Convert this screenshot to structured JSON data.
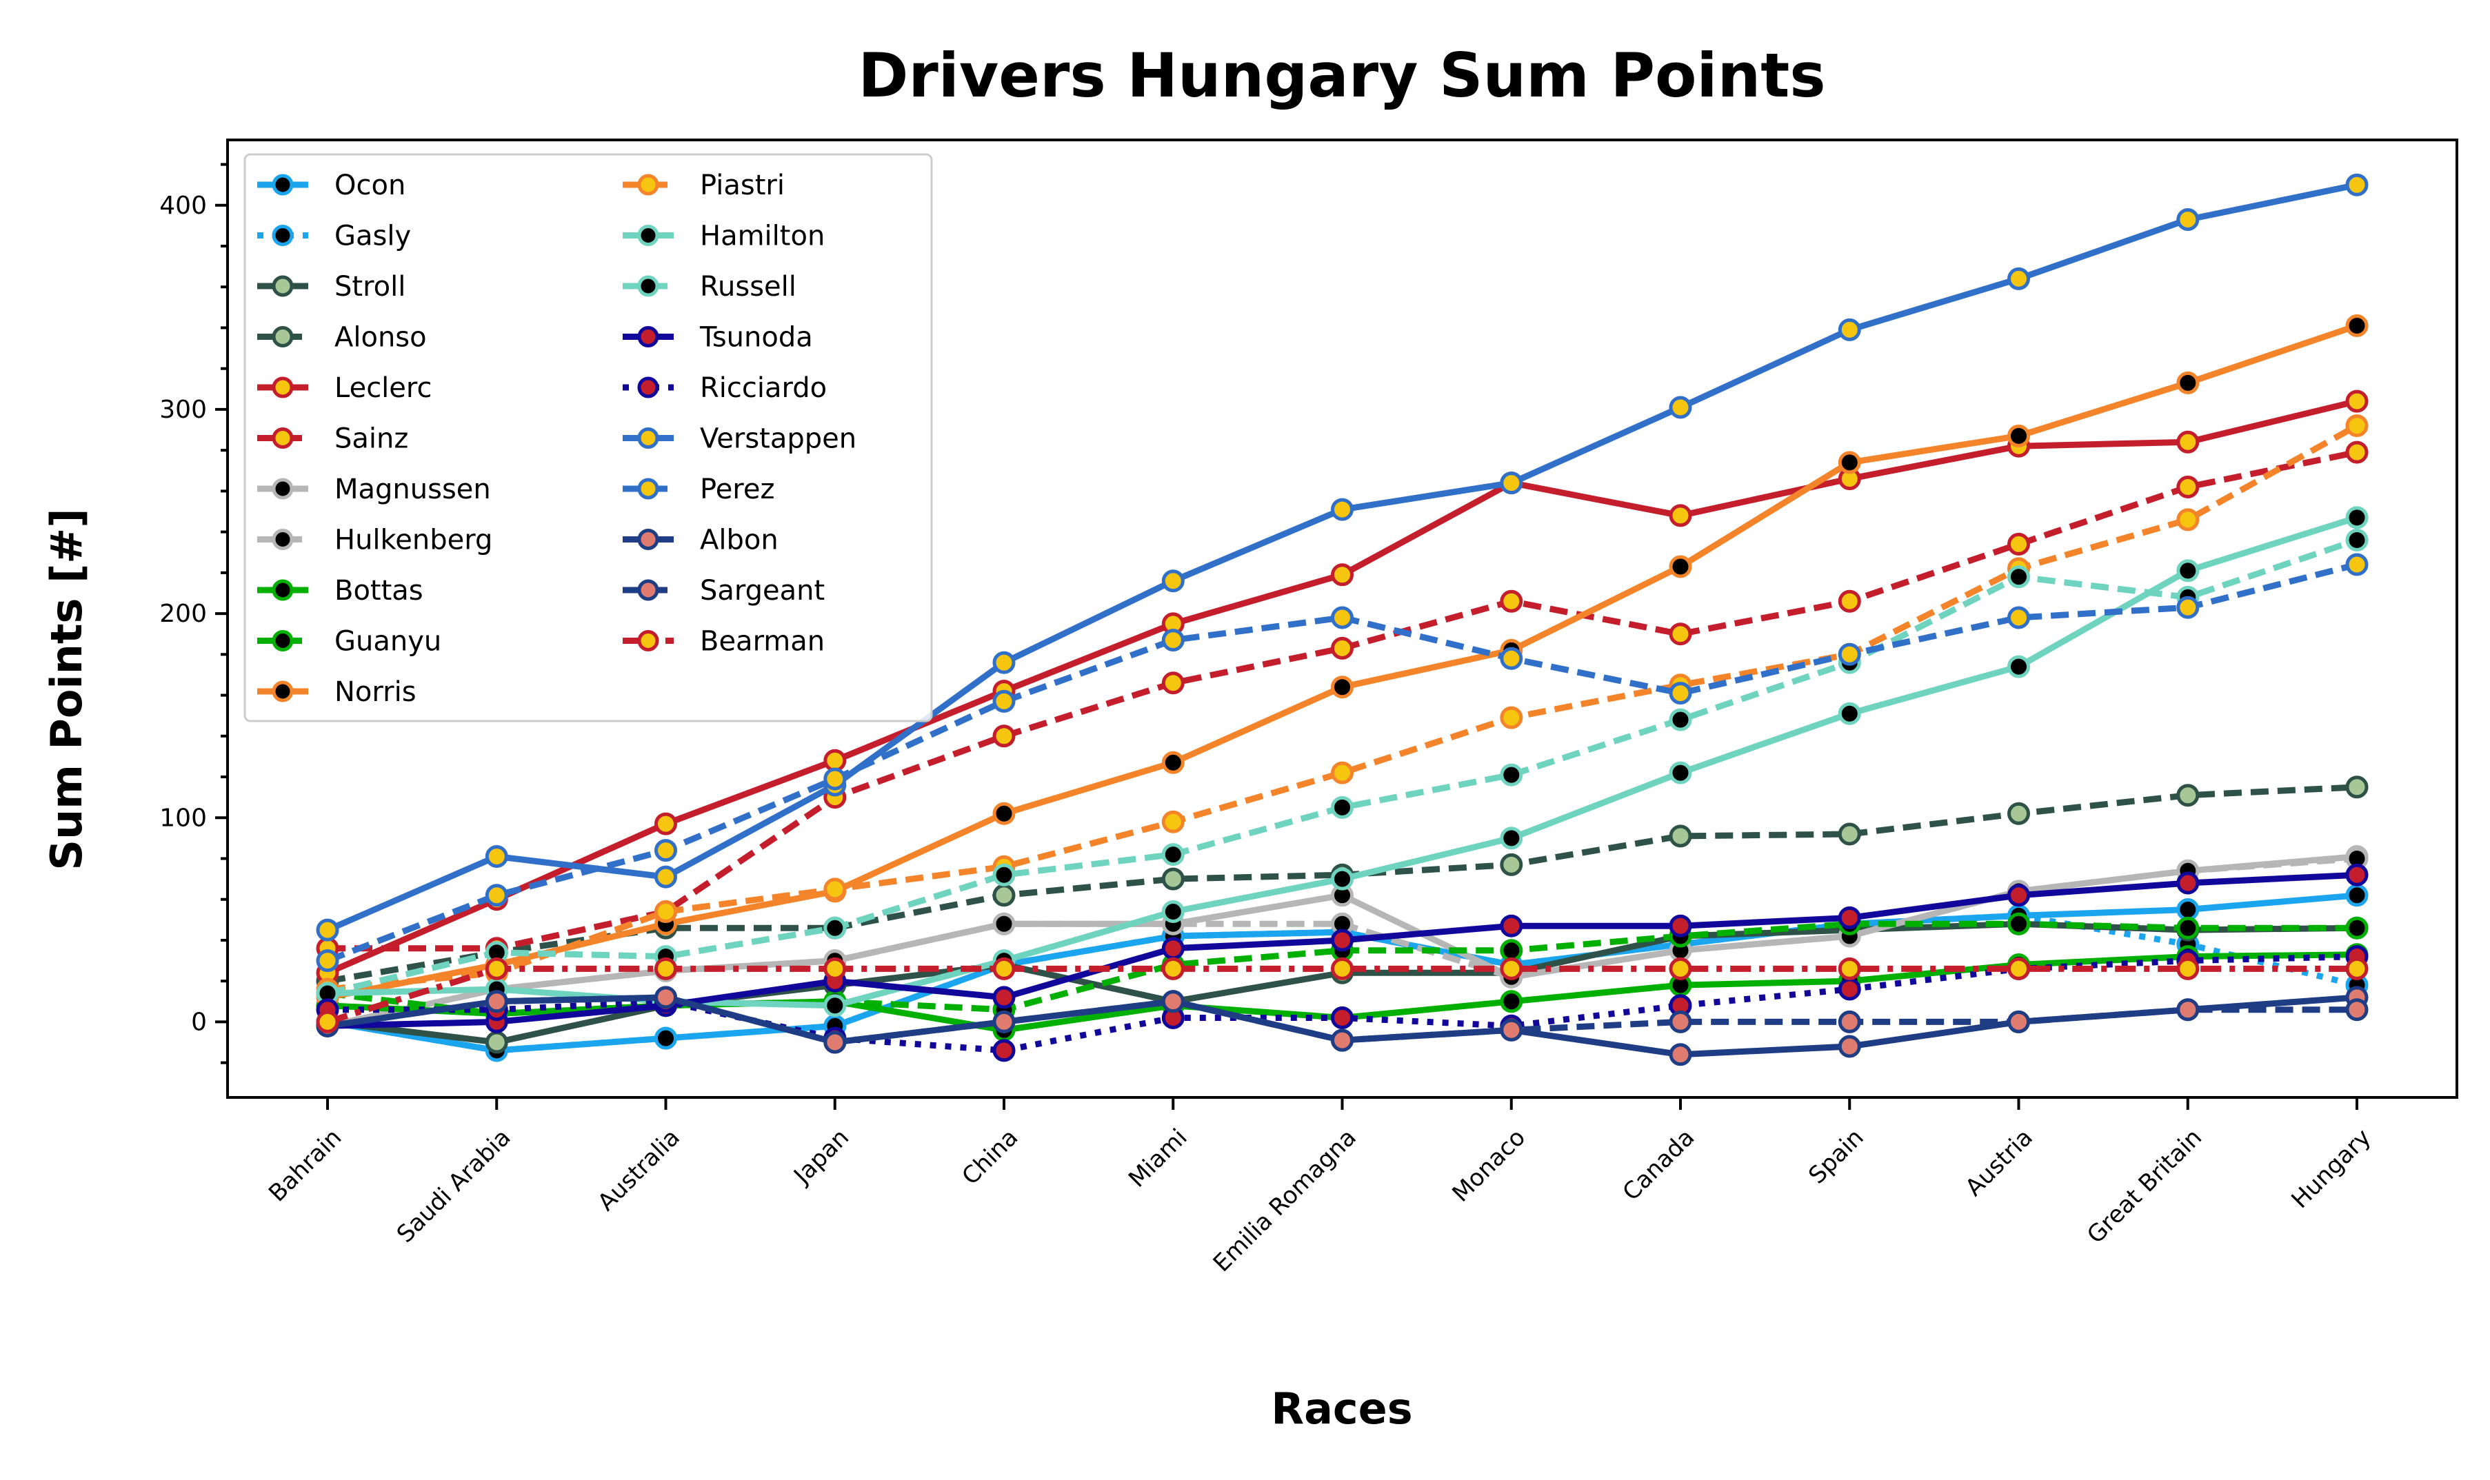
{
  "chart_data": {
    "type": "line",
    "title": "Drivers Hungary Sum Points",
    "xlabel": "Races",
    "ylabel": "Sum Points [#]",
    "ylim": [
      -37,
      432
    ],
    "yticks": [
      0,
      100,
      200,
      300,
      400
    ],
    "grid": false,
    "legend_placement": "top-left",
    "categories": [
      "Bahrain",
      "Saudi Arabia",
      "Australia",
      "Japan",
      "China",
      "Miami",
      "Emilia Romagna",
      "Monaco",
      "Canada",
      "Spain",
      "Austria",
      "Great Britain",
      "Hungary"
    ],
    "series": [
      {
        "name": "Ocon",
        "color": "#1ba5ee",
        "dash": "solid",
        "marker_face": "#000000",
        "marker_edge": "#1ba5ee",
        "values": [
          0,
          -14,
          -8,
          -2,
          28,
          42,
          44,
          28,
          38,
          48,
          52,
          55,
          62
        ]
      },
      {
        "name": "Gasly",
        "color": "#1ba5ee",
        "dash": "dotted",
        "marker_face": "#000000",
        "marker_edge": "#1ba5ee",
        "values": [
          0,
          -14,
          -8,
          -2,
          28,
          42,
          44,
          28,
          38,
          48,
          52,
          38,
          18
        ]
      },
      {
        "name": "Stroll",
        "color": "#2f5248",
        "dash": "solid",
        "marker_face": "#a7c796",
        "marker_edge": "#2f5248",
        "values": [
          0,
          -10,
          8,
          18,
          28,
          10,
          24,
          24,
          42,
          45,
          48,
          45,
          46
        ]
      },
      {
        "name": "Alonso",
        "color": "#2f5248",
        "dash": "dashed",
        "marker_face": "#a7c796",
        "marker_edge": "#2f5248",
        "values": [
          20,
          34,
          46,
          46,
          62,
          70,
          72,
          77,
          91,
          92,
          102,
          111,
          115
        ]
      },
      {
        "name": "Leclerc",
        "color": "#c41e2d",
        "dash": "solid",
        "marker_face": "#f5c510",
        "marker_edge": "#c41e2d",
        "values": [
          24,
          60,
          97,
          128,
          162,
          195,
          219,
          264,
          248,
          266,
          282,
          284,
          304
        ]
      },
      {
        "name": "Sainz",
        "color": "#c41e2d",
        "dash": "dashed",
        "marker_face": "#f5c510",
        "marker_edge": "#c41e2d",
        "values": [
          36,
          36,
          54,
          110,
          140,
          166,
          183,
          206,
          190,
          206,
          234,
          262,
          279
        ]
      },
      {
        "name": "Magnussen",
        "color": "#b6b6b6",
        "dash": "solid",
        "marker_face": "#000000",
        "marker_edge": "#b6b6b6",
        "values": [
          -2,
          16,
          25,
          30,
          48,
          48,
          62,
          22,
          35,
          42,
          64,
          74,
          81
        ]
      },
      {
        "name": "Hulkenberg",
        "color": "#b6b6b6",
        "dash": "dashed",
        "marker_face": "#000000",
        "marker_edge": "#b6b6b6",
        "values": [
          -2,
          16,
          25,
          30,
          48,
          48,
          48,
          22,
          35,
          42,
          64,
          74,
          80
        ]
      },
      {
        "name": "Bottas",
        "color": "#00b000",
        "dash": "solid",
        "marker_face": "#000000",
        "marker_edge": "#00b000",
        "values": [
          8,
          4,
          8,
          10,
          -4,
          8,
          2,
          10,
          18,
          20,
          28,
          32,
          33
        ]
      },
      {
        "name": "Guanyu",
        "color": "#00b000",
        "dash": "dashed",
        "marker_face": "#000000",
        "marker_edge": "#00b000",
        "values": [
          14,
          4,
          8,
          10,
          6,
          28,
          35,
          35,
          42,
          48,
          48,
          46,
          46
        ]
      },
      {
        "name": "Norris",
        "color": "#f4842a",
        "dash": "solid",
        "marker_face": "#000000",
        "marker_edge": "#f4842a",
        "values": [
          12,
          28,
          48,
          64,
          102,
          127,
          164,
          182,
          223,
          274,
          287,
          313,
          341
        ]
      },
      {
        "name": "Piastri",
        "color": "#f4842a",
        "dash": "dashed",
        "marker_face": "#f5c510",
        "marker_edge": "#f4842a",
        "values": [
          16,
          24,
          54,
          65,
          76,
          98,
          122,
          149,
          165,
          180,
          222,
          246,
          292
        ]
      },
      {
        "name": "Hamilton",
        "color": "#6fd4bf",
        "dash": "solid",
        "marker_face": "#000000",
        "marker_edge": "#6fd4bf",
        "values": [
          14,
          16,
          10,
          8,
          30,
          54,
          70,
          90,
          122,
          151,
          174,
          221,
          247
        ]
      },
      {
        "name": "Russell",
        "color": "#6fd4bf",
        "dash": "dashed",
        "marker_face": "#000000",
        "marker_edge": "#6fd4bf",
        "values": [
          14,
          34,
          32,
          46,
          72,
          82,
          105,
          121,
          148,
          176,
          218,
          208,
          236
        ]
      },
      {
        "name": "Tsunoda",
        "color": "#12079b",
        "dash": "solid",
        "marker_face": "#c41e2d",
        "marker_edge": "#12079b",
        "values": [
          -2,
          0,
          8,
          20,
          12,
          36,
          40,
          47,
          47,
          51,
          62,
          68,
          72
        ]
      },
      {
        "name": "Ricciardo",
        "color": "#12079b",
        "dash": "dotted",
        "marker_face": "#c41e2d",
        "marker_edge": "#12079b",
        "values": [
          6,
          6,
          10,
          -8,
          -14,
          2,
          2,
          -2,
          8,
          16,
          26,
          30,
          32
        ]
      },
      {
        "name": "Verstappen",
        "color": "#3170c9",
        "dash": "solid",
        "marker_face": "#f5c510",
        "marker_edge": "#3170c9",
        "values": [
          45,
          81,
          71,
          116,
          176,
          216,
          251,
          264,
          301,
          339,
          364,
          393,
          410
        ]
      },
      {
        "name": "Perez",
        "color": "#3170c9",
        "dash": "dashed",
        "marker_face": "#f5c510",
        "marker_edge": "#3170c9",
        "values": [
          30,
          62,
          84,
          119,
          157,
          187,
          198,
          178,
          161,
          180,
          198,
          203,
          224
        ]
      },
      {
        "name": "Albon",
        "color": "#1f3d85",
        "dash": "solid",
        "marker_face": "#e07b6f",
        "marker_edge": "#1f3d85",
        "values": [
          -2,
          10,
          12,
          -10,
          0,
          10,
          -9,
          -4,
          -16,
          -12,
          0,
          6,
          12
        ]
      },
      {
        "name": "Sargeant",
        "color": "#1f3d85",
        "dash": "dashed",
        "marker_face": "#e07b6f",
        "marker_edge": "#1f3d85",
        "values": [
          -2,
          10,
          12,
          -10,
          0,
          10,
          -9,
          -4,
          0,
          0,
          0,
          6,
          6
        ]
      },
      {
        "name": "Bearman",
        "color": "#c41e2d",
        "dash": "dashdot",
        "marker_face": "#f5c510",
        "marker_edge": "#c41e2d",
        "values": [
          0,
          26,
          26,
          26,
          26,
          26,
          26,
          26,
          26,
          26,
          26,
          26,
          26
        ]
      }
    ]
  }
}
